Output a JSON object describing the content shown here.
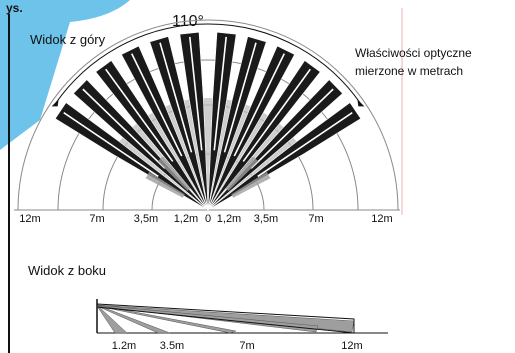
{
  "colors": {
    "background": "#ffffff",
    "ink": "#111111",
    "guide": "#8a8a8a",
    "zone_fill": "#bdbdbd",
    "zone_dark": "#1a1a1a",
    "side_zone": "#9e9e9e",
    "accent_corner": "#6ec3ea",
    "margin_line": "#e7b4b4"
  },
  "header": {
    "corner_text": "ys.",
    "angle_label": "110°"
  },
  "top_view": {
    "title": "Widok z góry",
    "note_line1": "Właściwości optyczne",
    "note_line2": "mierzone w metrach",
    "scale_labels": [
      "12m",
      "7m",
      "3,5m",
      "1,2m",
      "0",
      "1,2m",
      "3,5m",
      "7m",
      "12m"
    ]
  },
  "side_view": {
    "title": "Widok z boku",
    "distance_labels": [
      "1.2m",
      "3.5m",
      "7m",
      "12m"
    ]
  }
}
